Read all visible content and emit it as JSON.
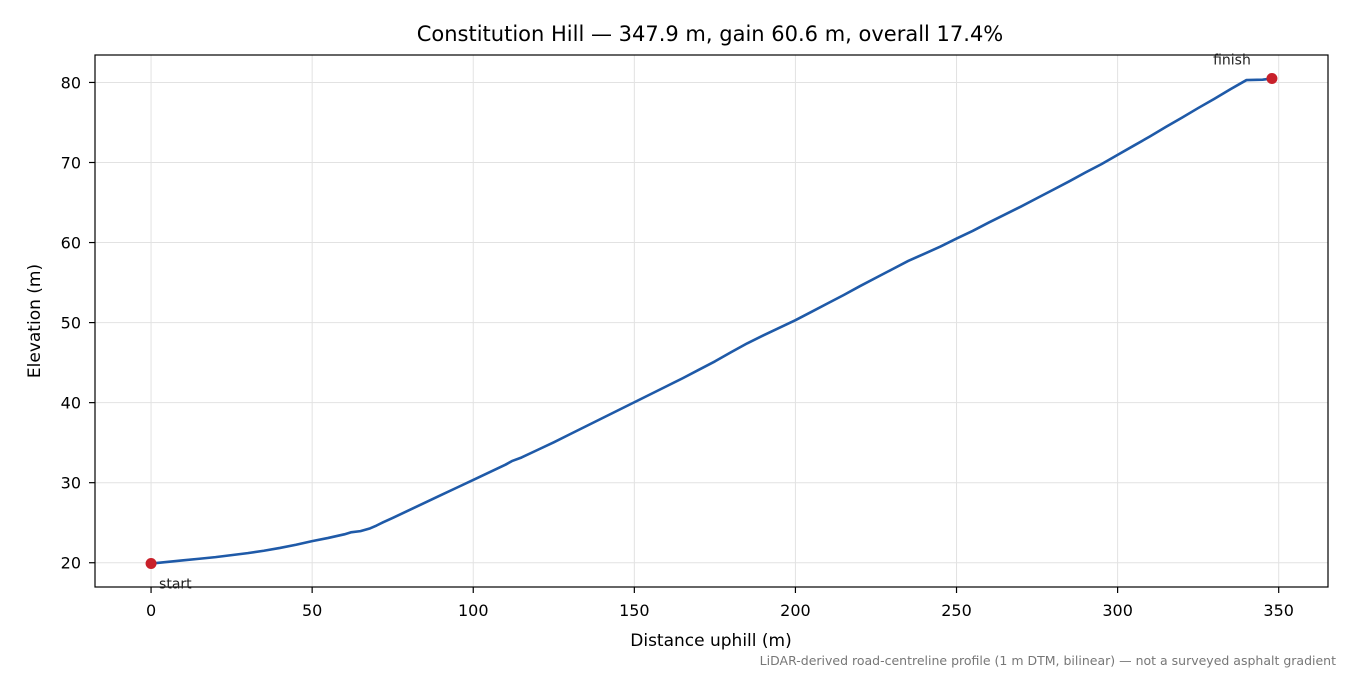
{
  "chart_data": {
    "type": "line",
    "title": "Constitution Hill — 347.9 m, gain 60.6 m, overall 17.4%",
    "xlabel": "Distance uphill (m)",
    "ylabel": "Elevation (m)",
    "xlim": [
      -17.4,
      365.3
    ],
    "ylim": [
      16.97,
      83.43
    ],
    "x_ticks": [
      0,
      50,
      100,
      150,
      200,
      250,
      300,
      350
    ],
    "y_ticks": [
      20,
      30,
      40,
      50,
      60,
      70,
      80
    ],
    "grid": true,
    "line_color": "#1f5aa8",
    "marker_color": "#c8202a",
    "series": [
      {
        "x": [
          0,
          5,
          10,
          15,
          20,
          25,
          30,
          35,
          40,
          45,
          50,
          55,
          60,
          62,
          65,
          68,
          70,
          72,
          75,
          80,
          85,
          90,
          95,
          100,
          105,
          110,
          112,
          115,
          120,
          125,
          130,
          135,
          140,
          145,
          150,
          155,
          160,
          165,
          170,
          175,
          180,
          185,
          190,
          195,
          200,
          205,
          210,
          215,
          220,
          225,
          230,
          235,
          240,
          245,
          250,
          255,
          260,
          265,
          270,
          275,
          280,
          285,
          290,
          295,
          300,
          305,
          310,
          315,
          320,
          325,
          330,
          335,
          340,
          345,
          347.9
        ],
        "y": [
          19.9,
          20.1,
          20.3,
          20.5,
          20.7,
          20.95,
          21.2,
          21.5,
          21.85,
          22.25,
          22.7,
          23.1,
          23.55,
          23.8,
          23.95,
          24.3,
          24.65,
          25.05,
          25.6,
          26.55,
          27.5,
          28.45,
          29.4,
          30.35,
          31.3,
          32.25,
          32.7,
          33.15,
          34.1,
          35.05,
          36.05,
          37.05,
          38.05,
          39.05,
          40.05,
          41.05,
          42.05,
          43.05,
          44.1,
          45.15,
          46.3,
          47.4,
          48.4,
          49.35,
          50.3,
          51.35,
          52.4,
          53.45,
          54.55,
          55.6,
          56.65,
          57.7,
          58.6,
          59.5,
          60.5,
          61.45,
          62.5,
          63.5,
          64.5,
          65.55,
          66.6,
          67.65,
          68.75,
          69.8,
          70.95,
          72.1,
          73.25,
          74.45,
          75.6,
          76.8,
          77.95,
          79.15,
          80.3,
          80.35,
          80.5
        ]
      }
    ],
    "annotations": {
      "start": {
        "label": "start",
        "x": 0,
        "y": 19.9
      },
      "finish": {
        "label": "finish",
        "x": 347.9,
        "y": 80.5
      }
    },
    "footnote": "LiDAR-derived road-centreline profile (1 m DTM, bilinear) — not a surveyed asphalt gradient"
  }
}
